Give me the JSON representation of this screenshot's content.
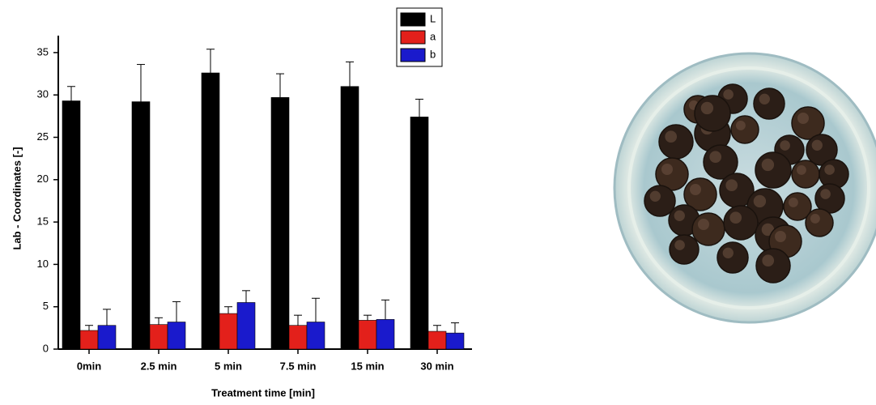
{
  "chart_data": {
    "type": "bar",
    "x_label": "Treatment time [min]",
    "y_label": "Lab - Coordinates [-]",
    "categories": [
      "0min",
      "2.5 min",
      "5 min",
      "7.5 min",
      "15 min",
      "30 min"
    ],
    "series": [
      {
        "name": "L",
        "color": "#000000",
        "values": [
          29.3,
          29.2,
          32.6,
          29.7,
          31.0,
          27.4
        ],
        "errors": [
          1.7,
          4.4,
          2.8,
          2.8,
          2.9,
          2.1
        ]
      },
      {
        "name": "a",
        "color": "#e3201b",
        "values": [
          2.2,
          2.9,
          4.2,
          2.8,
          3.4,
          2.1
        ],
        "errors": [
          0.6,
          0.8,
          0.8,
          1.2,
          0.6,
          0.7
        ]
      },
      {
        "name": "b",
        "color": "#1a1acc",
        "values": [
          2.8,
          3.2,
          5.5,
          3.2,
          3.5,
          1.9
        ],
        "errors": [
          1.9,
          2.4,
          1.4,
          2.8,
          2.3,
          1.2
        ]
      }
    ],
    "ylim": [
      0,
      37
    ],
    "yticks": [
      0,
      5,
      10,
      15,
      20,
      25,
      30,
      35
    ],
    "legend": "top-right"
  }
}
